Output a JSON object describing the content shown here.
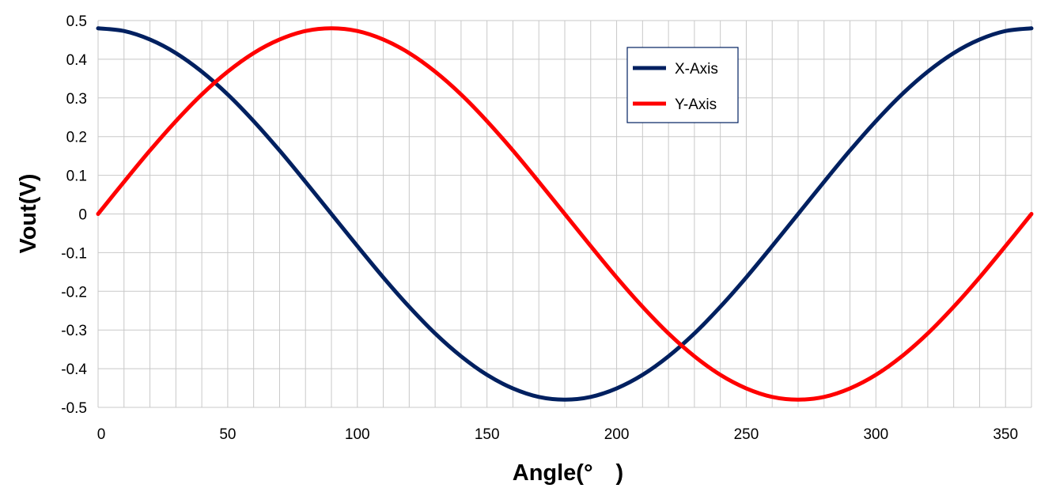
{
  "chart_data": {
    "type": "line",
    "title": "",
    "xlabel": "Angle(°　)",
    "ylabel": "Vout(V)",
    "xlim": [
      0,
      360
    ],
    "ylim": [
      -0.5,
      0.5
    ],
    "x_ticks": [
      0,
      50,
      100,
      150,
      200,
      250,
      300,
      350
    ],
    "x_tick_labels": [
      "0",
      "50",
      "100",
      "150",
      "200",
      "250",
      "300",
      "350"
    ],
    "x_grid_step": 10,
    "y_ticks": [
      0.5,
      0.4,
      0.3,
      0.2,
      0.1,
      0,
      -0.1,
      -0.2,
      -0.3,
      -0.4,
      -0.5
    ],
    "y_tick_labels": [
      "0.5",
      "0.4",
      "0.3",
      "0.2",
      "0.1",
      "0",
      "-0.1",
      "-0.2",
      "-0.3",
      "-0.4",
      "-0.5"
    ],
    "grid": true,
    "legend_position": "top-right",
    "x": [
      0,
      10,
      20,
      30,
      40,
      50,
      60,
      70,
      80,
      90,
      100,
      110,
      120,
      130,
      140,
      150,
      160,
      170,
      180,
      190,
      200,
      210,
      220,
      230,
      240,
      250,
      260,
      270,
      280,
      290,
      300,
      310,
      320,
      330,
      340,
      350,
      360
    ],
    "series": [
      {
        "name": "X-Axis",
        "color": "#002060",
        "values": [
          0.48,
          0.473,
          0.451,
          0.416,
          0.368,
          0.309,
          0.24,
          0.164,
          0.083,
          0,
          -0.083,
          -0.164,
          -0.24,
          -0.309,
          -0.368,
          -0.416,
          -0.451,
          -0.473,
          -0.48,
          -0.473,
          -0.451,
          -0.416,
          -0.368,
          -0.309,
          -0.24,
          -0.164,
          -0.083,
          0,
          0.083,
          0.164,
          0.24,
          0.309,
          0.368,
          0.416,
          0.451,
          0.473,
          0.48
        ]
      },
      {
        "name": "Y-Axis",
        "color": "#ff0000",
        "values": [
          0,
          0.083,
          0.164,
          0.24,
          0.309,
          0.368,
          0.416,
          0.451,
          0.473,
          0.48,
          0.473,
          0.451,
          0.416,
          0.368,
          0.309,
          0.24,
          0.164,
          0.083,
          0,
          -0.083,
          -0.164,
          -0.24,
          -0.309,
          -0.368,
          -0.416,
          -0.451,
          -0.473,
          -0.48,
          -0.473,
          -0.451,
          -0.416,
          -0.368,
          -0.309,
          -0.24,
          -0.164,
          -0.083,
          0
        ]
      }
    ]
  }
}
